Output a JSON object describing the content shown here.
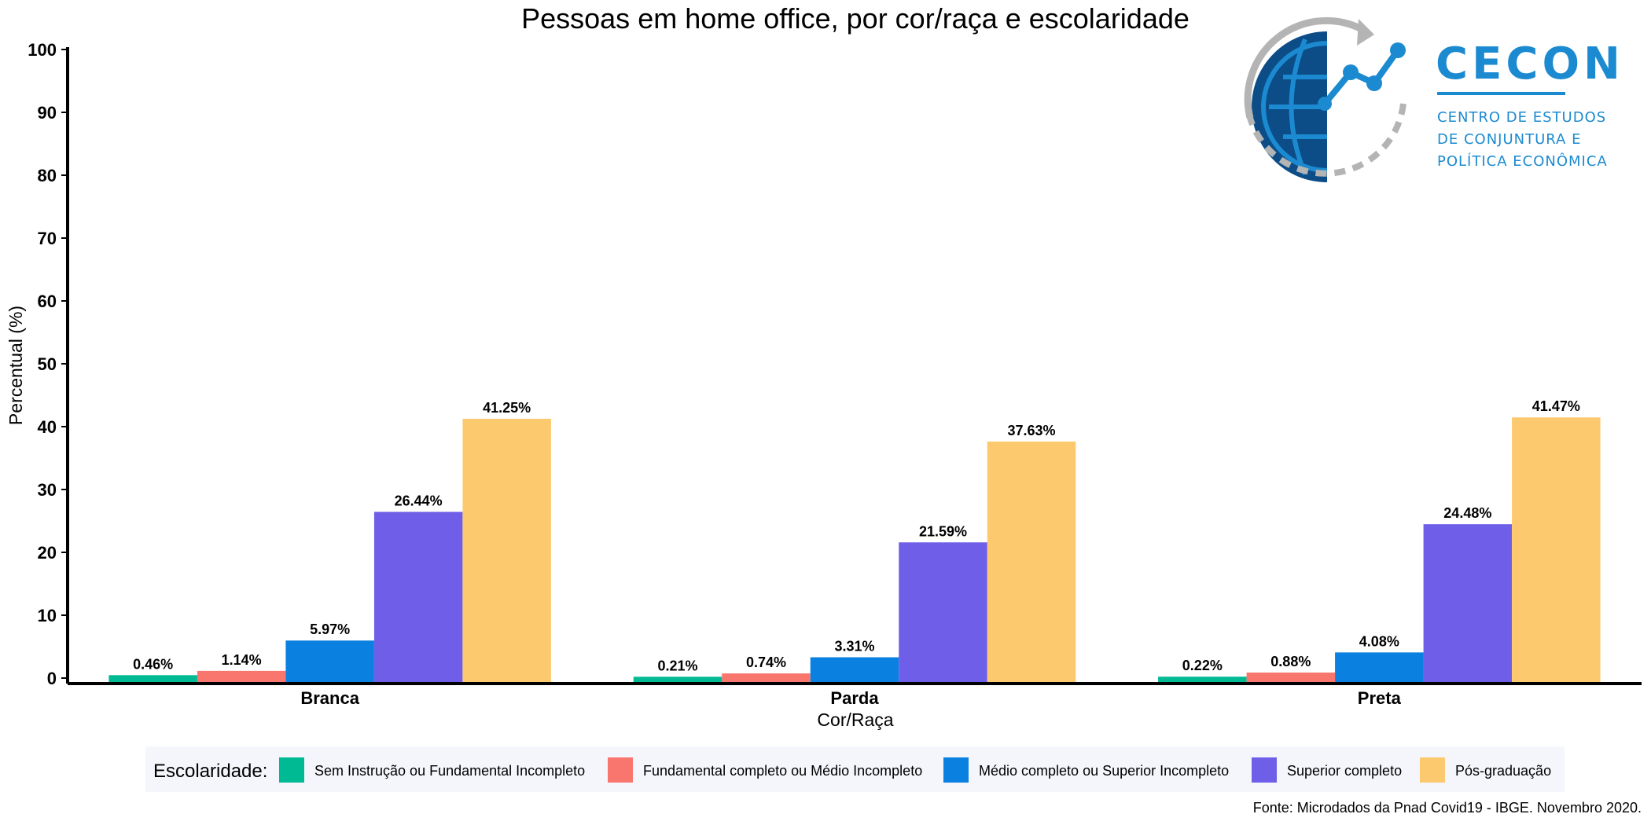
{
  "chart_data": {
    "type": "bar",
    "title": "Pessoas em home office, por cor/raça e escolaridade",
    "xlabel": "Cor/Raça",
    "ylabel": "Percentual (%)",
    "ylim": [
      0,
      100
    ],
    "yticks": [
      0,
      10,
      20,
      30,
      40,
      50,
      60,
      70,
      80,
      90,
      100
    ],
    "categories": [
      "Branca",
      "Parda",
      "Preta"
    ],
    "series": [
      {
        "name": "Sem Instrução ou Fundamental Incompleto",
        "color": "#00ba94",
        "values": [
          0.46,
          0.21,
          0.22
        ],
        "labels": [
          "0.46%",
          "0.21%",
          "0.22%"
        ]
      },
      {
        "name": "Fundamental completo ou Médio Incompleto",
        "color": "#f8766d",
        "values": [
          1.14,
          0.74,
          0.88
        ],
        "labels": [
          "1.14%",
          "0.74%",
          "0.88%"
        ]
      },
      {
        "name": "Médio completo ou Superior Incompleto",
        "color": "#0a80e0",
        "values": [
          5.97,
          3.31,
          4.08
        ],
        "labels": [
          "5.97%",
          "3.31%",
          "4.08%"
        ]
      },
      {
        "name": "Superior completo",
        "color": "#6f5ee8",
        "values": [
          26.44,
          21.59,
          24.48
        ],
        "labels": [
          "26.44%",
          "21.59%",
          "24.48%"
        ]
      },
      {
        "name": "Pós-graduação",
        "color": "#fcc96e",
        "values": [
          41.25,
          37.63,
          41.47
        ],
        "labels": [
          "41.25%",
          "37.63%",
          "41.47%"
        ]
      }
    ],
    "legend_title": "Escolaridade:",
    "legend_position": "bottom",
    "grid": false
  },
  "source_note": "Fonte: Microdados da Pnad Covid19 - IBGE. Novembro 2020.",
  "logo": {
    "name": "CECON",
    "tagline": [
      "CENTRO DE ESTUDOS",
      "DE CONJUNTURA E",
      "POLÍTICA ECONÔMICA"
    ]
  }
}
